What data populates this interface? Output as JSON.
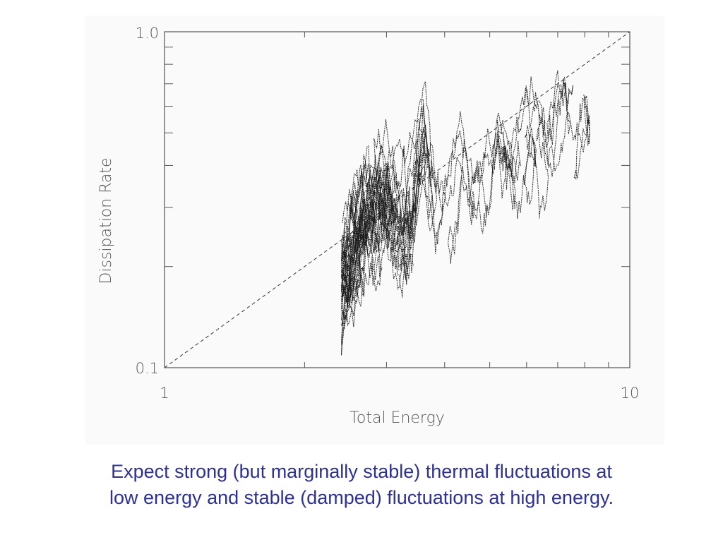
{
  "slide": {
    "caption_lines": [
      "Expect strong (but marginally stable) thermal fluctuations at",
      "low energy and stable (damped) fluctuations at high energy."
    ],
    "caption_color": "#2e3192"
  },
  "chart_data": {
    "type": "line",
    "xlabel": "Total Energy",
    "ylabel": "Dissipation Rate",
    "xscale": "log",
    "yscale": "log",
    "xlim": [
      1,
      10
    ],
    "ylim": [
      0.1,
      1.0
    ],
    "x_tick_labels": [
      "1",
      "10"
    ],
    "y_tick_labels": [
      "0.1",
      "1.0"
    ],
    "grid": false,
    "legend": "none",
    "series": [
      {
        "style": "dashed",
        "x": [
          1,
          10
        ],
        "y": [
          0.1,
          1.0
        ]
      },
      {
        "style": "dotted-noisy",
        "x": [
          2.4,
          2.45,
          2.5,
          2.6,
          2.7,
          2.8,
          2.9,
          3.0,
          3.1,
          3.2,
          3.3,
          3.4,
          3.5,
          3.6,
          3.7,
          3.8,
          3.9,
          4.0,
          4.1,
          4.2,
          4.4,
          4.6,
          4.8,
          5.0,
          5.2,
          5.4,
          5.6,
          5.8,
          6.0,
          6.2,
          6.4,
          6.6,
          6.8,
          7.0,
          7.2,
          7.4,
          7.6,
          7.8,
          8.0,
          8.2
        ],
        "y": [
          0.18,
          0.2,
          0.22,
          0.24,
          0.26,
          0.27,
          0.28,
          0.3,
          0.27,
          0.25,
          0.23,
          0.26,
          0.35,
          0.4,
          0.34,
          0.3,
          0.28,
          0.32,
          0.35,
          0.38,
          0.4,
          0.37,
          0.34,
          0.4,
          0.45,
          0.42,
          0.38,
          0.4,
          0.46,
          0.5,
          0.47,
          0.43,
          0.48,
          0.53,
          0.62,
          0.5,
          0.47,
          0.55,
          0.6,
          0.55
        ]
      }
    ]
  }
}
